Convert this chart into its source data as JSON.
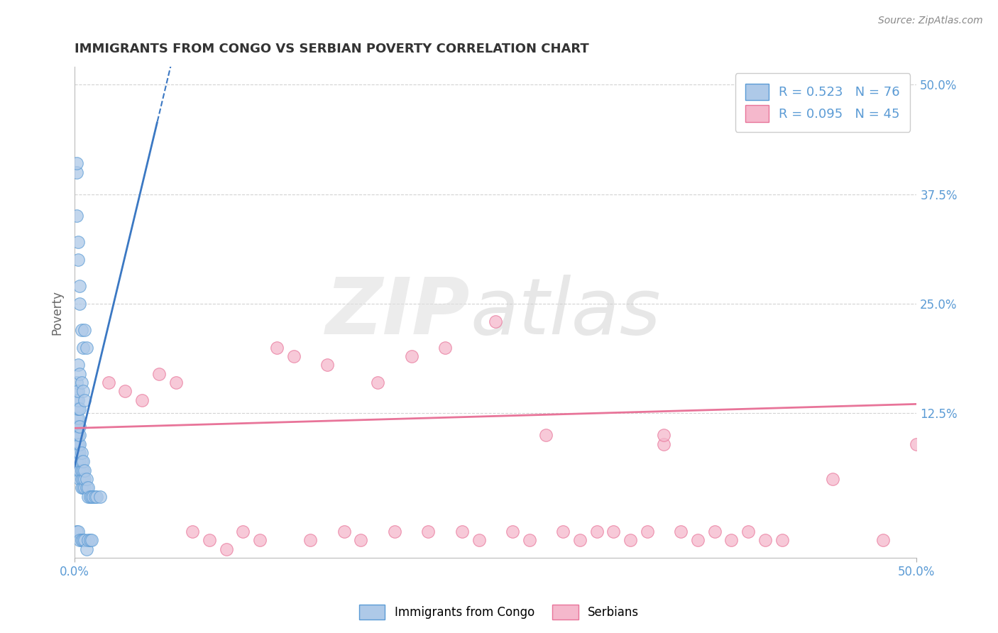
{
  "title": "IMMIGRANTS FROM CONGO VS SERBIAN POVERTY CORRELATION CHART",
  "source": "Source: ZipAtlas.com",
  "ylabel": "Poverty",
  "y_ticks": [
    0.0,
    0.125,
    0.25,
    0.375,
    0.5
  ],
  "y_tick_labels_right": [
    "",
    "12.5%",
    "25.0%",
    "37.5%",
    "50.0%"
  ],
  "xlim": [
    0.0,
    0.5
  ],
  "ylim": [
    -0.04,
    0.52
  ],
  "legend_entries": [
    {
      "label": "R = 0.523   N = 76",
      "color": "#a8c8e8"
    },
    {
      "label": "R = 0.095   N = 45",
      "color": "#f4b8c8"
    }
  ],
  "legend_label1": "Immigrants from Congo",
  "legend_label2": "Serbians",
  "blue_color": "#3b78c3",
  "pink_color": "#e87499",
  "blue_scatter_facecolor": "#aec9e8",
  "blue_scatter_edgecolor": "#5a9bd5",
  "pink_scatter_facecolor": "#f5b8cc",
  "pink_scatter_edgecolor": "#e87499",
  "title_color": "#333333",
  "source_color": "#888888",
  "tick_label_color": "#5b9bd5",
  "grid_color": "#c8c8c8",
  "background_color": "#ffffff",
  "trendline_blue_slope": 8.0,
  "trendline_blue_intercept": 0.065,
  "trendline_pink_slope": 0.055,
  "trendline_pink_intercept": 0.108,
  "scatter_blue_x": [
    0.001,
    0.001,
    0.001,
    0.001,
    0.001,
    0.001,
    0.001,
    0.001,
    0.001,
    0.001,
    0.002,
    0.002,
    0.002,
    0.002,
    0.002,
    0.002,
    0.002,
    0.002,
    0.002,
    0.002,
    0.003,
    0.003,
    0.003,
    0.003,
    0.003,
    0.003,
    0.003,
    0.003,
    0.004,
    0.004,
    0.004,
    0.004,
    0.004,
    0.005,
    0.005,
    0.005,
    0.005,
    0.006,
    0.006,
    0.006,
    0.007,
    0.007,
    0.008,
    0.008,
    0.009,
    0.01,
    0.011,
    0.012,
    0.013,
    0.015,
    0.001,
    0.001,
    0.001,
    0.002,
    0.002,
    0.003,
    0.003,
    0.004,
    0.005,
    0.006,
    0.007,
    0.001,
    0.002,
    0.003,
    0.004,
    0.005,
    0.006,
    0.007,
    0.008,
    0.009,
    0.01,
    0.002,
    0.003,
    0.004,
    0.005,
    0.006
  ],
  "scatter_blue_y": [
    0.07,
    0.08,
    0.09,
    0.1,
    0.11,
    0.12,
    0.13,
    0.14,
    0.15,
    0.16,
    0.06,
    0.07,
    0.08,
    0.09,
    0.1,
    0.11,
    0.12,
    0.13,
    0.14,
    0.15,
    0.05,
    0.06,
    0.07,
    0.08,
    0.09,
    0.1,
    0.11,
    0.13,
    0.04,
    0.05,
    0.06,
    0.07,
    0.08,
    0.04,
    0.05,
    0.06,
    0.07,
    0.04,
    0.05,
    0.06,
    0.04,
    0.05,
    0.03,
    0.04,
    0.03,
    0.03,
    0.03,
    0.03,
    0.03,
    0.03,
    0.4,
    0.41,
    0.35,
    0.3,
    0.32,
    0.25,
    0.27,
    0.22,
    0.2,
    0.22,
    0.2,
    -0.01,
    -0.01,
    -0.02,
    -0.02,
    -0.02,
    -0.02,
    -0.03,
    -0.02,
    -0.02,
    -0.02,
    0.18,
    0.17,
    0.16,
    0.15,
    0.14
  ],
  "scatter_pink_x": [
    0.02,
    0.03,
    0.04,
    0.05,
    0.06,
    0.07,
    0.08,
    0.09,
    0.1,
    0.11,
    0.12,
    0.13,
    0.14,
    0.15,
    0.16,
    0.17,
    0.18,
    0.19,
    0.2,
    0.21,
    0.22,
    0.23,
    0.24,
    0.25,
    0.26,
    0.27,
    0.28,
    0.29,
    0.3,
    0.31,
    0.32,
    0.33,
    0.34,
    0.35,
    0.36,
    0.37,
    0.38,
    0.39,
    0.4,
    0.41,
    0.42,
    0.45,
    0.5,
    0.48,
    0.35
  ],
  "scatter_pink_y": [
    0.16,
    0.15,
    0.14,
    0.17,
    0.16,
    -0.01,
    -0.02,
    -0.03,
    -0.01,
    -0.02,
    0.2,
    0.19,
    -0.02,
    0.18,
    -0.01,
    -0.02,
    0.16,
    -0.01,
    0.19,
    -0.01,
    0.2,
    -0.01,
    -0.02,
    0.23,
    -0.01,
    -0.02,
    0.1,
    -0.01,
    -0.02,
    -0.01,
    -0.01,
    -0.02,
    -0.01,
    0.09,
    -0.01,
    -0.02,
    -0.01,
    -0.02,
    -0.01,
    -0.02,
    -0.02,
    0.05,
    0.09,
    -0.02,
    0.1
  ]
}
